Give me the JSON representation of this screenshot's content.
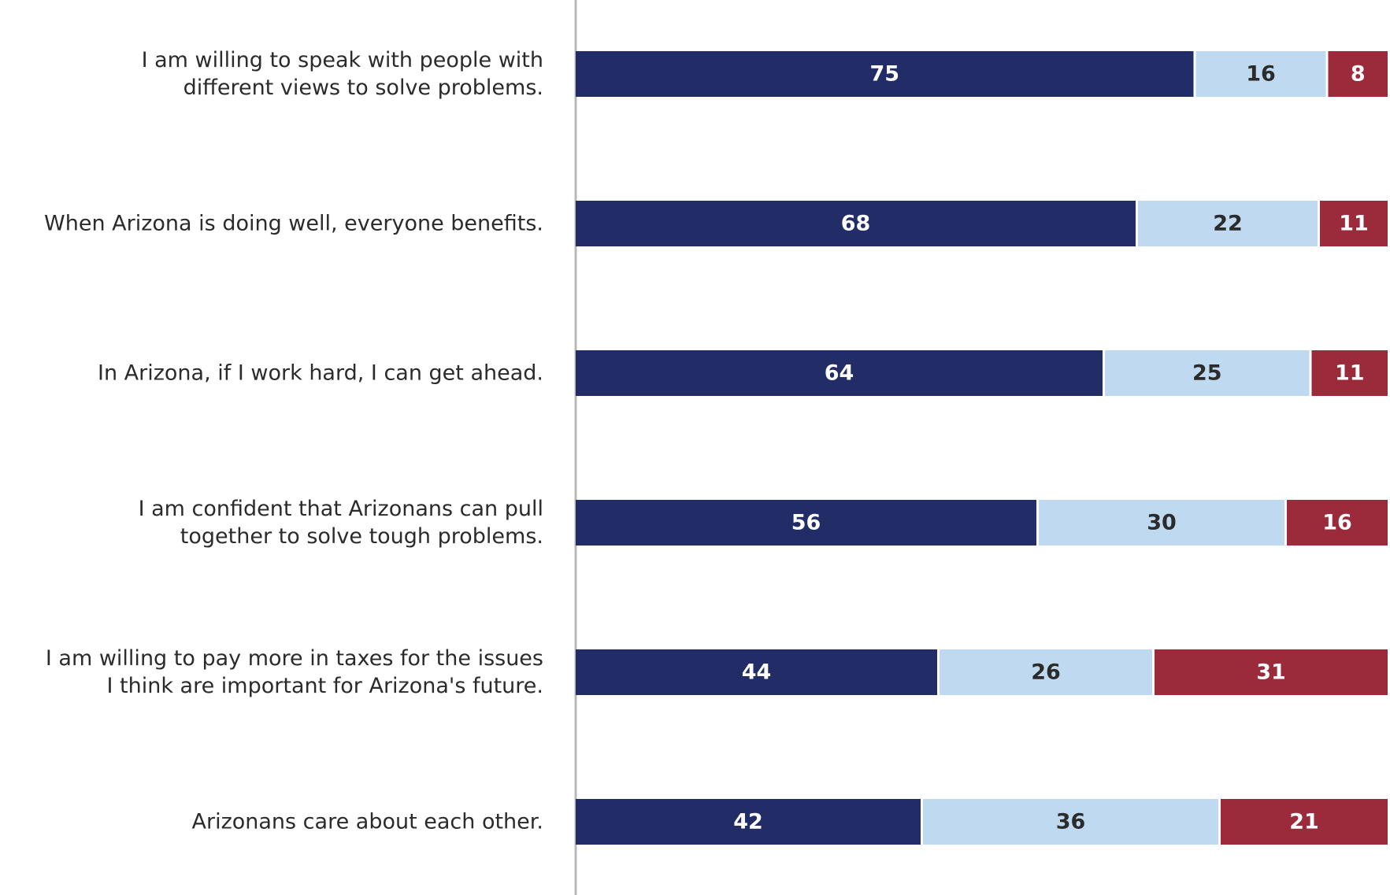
{
  "chart_data": {
    "type": "bar",
    "orientation": "horizontal",
    "stacked": true,
    "categories": [
      [
        "I am willing to speak with people with",
        "different views to solve problems."
      ],
      [
        "When Arizona is doing well, everyone benefits."
      ],
      [
        "In Arizona, if I work hard, I can get ahead."
      ],
      [
        "I am confident that Arizonans can pull",
        "together to solve tough problems."
      ],
      [
        "I am willing to pay more in taxes for the issues",
        "I think are important for Arizona's future."
      ],
      [
        "Arizonans care about each other."
      ]
    ],
    "series": [
      {
        "values": [
          75,
          68,
          64,
          56,
          44,
          42
        ],
        "color": "#222c66",
        "label_color": "#ffffff"
      },
      {
        "values": [
          16,
          22,
          25,
          30,
          26,
          36
        ],
        "color": "#bfdaf0",
        "label_color": "#2b2b2b"
      },
      {
        "values": [
          8,
          11,
          11,
          16,
          31,
          21
        ],
        "color": "#9b2a3a",
        "label_color": "#ffffff"
      }
    ],
    "xlim": [
      0,
      100
    ],
    "grid": false,
    "legend": "none"
  }
}
